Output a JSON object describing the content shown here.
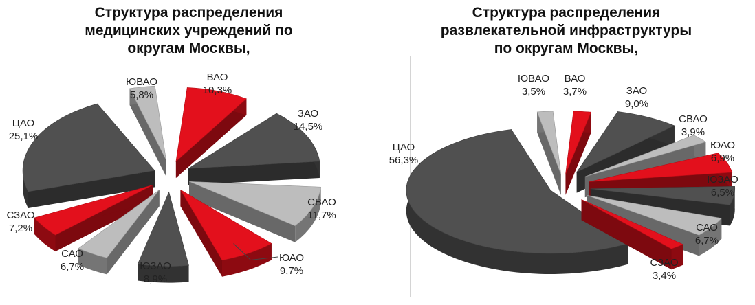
{
  "colors": {
    "dark": "#505050",
    "red": "#e3101c",
    "light": "#bdbdbd",
    "label": "#222222"
  },
  "chart_data": [
    {
      "type": "pie",
      "style": "3d-exploded",
      "title_lines": [
        "Структура распределения",
        "медицинских учреждений по",
        "округам Москвы,"
      ],
      "slices": [
        {
          "label": "ВАО",
          "value": 10.3,
          "value_text": "10,3%",
          "color": "red"
        },
        {
          "label": "ЗАО",
          "value": 14.5,
          "value_text": "14,5%",
          "color": "dark"
        },
        {
          "label": "СВАО",
          "value": 11.7,
          "value_text": "11,7%",
          "color": "light"
        },
        {
          "label": "ЮАО",
          "value": 9.7,
          "value_text": "9,7%",
          "color": "red"
        },
        {
          "label": "ЮЗАО",
          "value": 8.9,
          "value_text": "8,9%",
          "color": "dark"
        },
        {
          "label": "САО",
          "value": 6.7,
          "value_text": "6,7%",
          "color": "light"
        },
        {
          "label": "СЗАО",
          "value": 7.2,
          "value_text": "7,2%",
          "color": "red"
        },
        {
          "label": "ЦАО",
          "value": 25.1,
          "value_text": "25,1%",
          "color": "dark"
        },
        {
          "label": "ЮВАО",
          "value": 5.8,
          "value_text": "5,8%",
          "color": "light"
        }
      ]
    },
    {
      "type": "pie",
      "style": "3d-exploded",
      "title_lines": [
        "Структура распределения",
        "развлекательной инфраструктуры",
        "по округам Москвы,"
      ],
      "slices": [
        {
          "label": "ВАО",
          "value": 3.7,
          "value_text": "3,7%",
          "color": "red"
        },
        {
          "label": "ЗАО",
          "value": 9.0,
          "value_text": "9,0%",
          "color": "dark"
        },
        {
          "label": "СВАО",
          "value": 3.9,
          "value_text": "3,9%",
          "color": "light"
        },
        {
          "label": "ЮАО",
          "value": 6.9,
          "value_text": "6,9%",
          "color": "red"
        },
        {
          "label": "ЮЗАО",
          "value": 6.5,
          "value_text": "6,5%",
          "color": "dark"
        },
        {
          "label": "САО",
          "value": 6.7,
          "value_text": "6,7%",
          "color": "light"
        },
        {
          "label": "СЗАО",
          "value": 3.4,
          "value_text": "3,4%",
          "color": "red"
        },
        {
          "label": "ЦАО",
          "value": 56.3,
          "value_text": "56,3%",
          "color": "dark"
        },
        {
          "label": "ЮВАО",
          "value": 3.5,
          "value_text": "3,5%",
          "color": "light"
        }
      ]
    }
  ]
}
